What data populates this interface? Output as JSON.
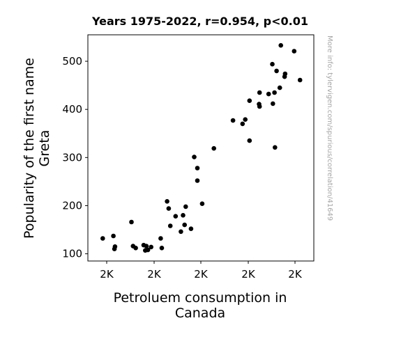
{
  "chart_data": {
    "type": "scatter",
    "title": "Years 1975-2022, r=0.954, p<0.01",
    "xlabel_lines": [
      "Petroluem consumption in",
      "Canada"
    ],
    "ylabel_lines": [
      "Popularity of the first name",
      "Greta"
    ],
    "watermark": "More info: tylervigen.com/spurious/correlation/41649",
    "x_tick_labels": [
      "2K",
      "2K",
      "2K",
      "2K",
      "2K"
    ],
    "y_ticks": [
      100,
      200,
      300,
      400,
      500
    ],
    "xlim": [
      1612,
      2037
    ],
    "ylim": [
      85,
      555
    ],
    "grid": false,
    "marker_color": "#000000",
    "points": [
      {
        "x": 1640,
        "y": 132
      },
      {
        "x": 1660,
        "y": 137
      },
      {
        "x": 1662,
        "y": 110
      },
      {
        "x": 1663,
        "y": 115
      },
      {
        "x": 1694,
        "y": 166
      },
      {
        "x": 1697,
        "y": 116
      },
      {
        "x": 1702,
        "y": 112
      },
      {
        "x": 1717,
        "y": 118
      },
      {
        "x": 1720,
        "y": 107
      },
      {
        "x": 1722,
        "y": 116
      },
      {
        "x": 1725,
        "y": 108
      },
      {
        "x": 1731,
        "y": 114
      },
      {
        "x": 1749,
        "y": 132
      },
      {
        "x": 1751,
        "y": 112
      },
      {
        "x": 1761,
        "y": 209
      },
      {
        "x": 1764,
        "y": 194
      },
      {
        "x": 1767,
        "y": 158
      },
      {
        "x": 1777,
        "y": 178
      },
      {
        "x": 1787,
        "y": 146
      },
      {
        "x": 1791,
        "y": 180
      },
      {
        "x": 1794,
        "y": 160
      },
      {
        "x": 1796,
        "y": 198
      },
      {
        "x": 1806,
        "y": 152
      },
      {
        "x": 1812,
        "y": 301
      },
      {
        "x": 1818,
        "y": 278
      },
      {
        "x": 1818,
        "y": 252
      },
      {
        "x": 1827,
        "y": 204
      },
      {
        "x": 1849,
        "y": 319
      },
      {
        "x": 1885,
        "y": 377
      },
      {
        "x": 1903,
        "y": 370
      },
      {
        "x": 1908,
        "y": 379
      },
      {
        "x": 1916,
        "y": 418
      },
      {
        "x": 1916,
        "y": 335
      },
      {
        "x": 1934,
        "y": 411
      },
      {
        "x": 1935,
        "y": 435
      },
      {
        "x": 1935,
        "y": 406
      },
      {
        "x": 1952,
        "y": 432
      },
      {
        "x": 1959,
        "y": 494
      },
      {
        "x": 1960,
        "y": 412
      },
      {
        "x": 1963,
        "y": 435
      },
      {
        "x": 1964,
        "y": 321
      },
      {
        "x": 1967,
        "y": 480
      },
      {
        "x": 1973,
        "y": 445
      },
      {
        "x": 1975,
        "y": 533
      },
      {
        "x": 1982,
        "y": 468
      },
      {
        "x": 1983,
        "y": 474
      },
      {
        "x": 2000,
        "y": 521
      },
      {
        "x": 2011,
        "y": 461
      }
    ]
  }
}
